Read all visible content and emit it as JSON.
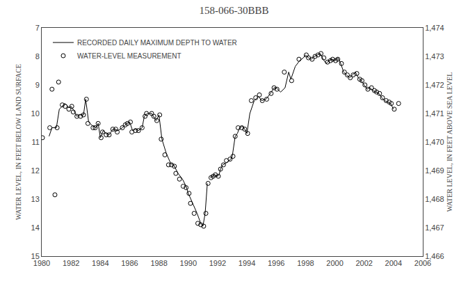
{
  "chart_data": {
    "type": "line",
    "title": "158-066-30BBB",
    "ylabel": "WATER LEVEL, IN FEET BELOW LAND SURFACE",
    "y2label": "WATER LEVEL, IN FEET ABOVE SEA LEVEL",
    "xlim": [
      1980,
      2006
    ],
    "xticks": [
      1980,
      1982,
      1984,
      1986,
      1988,
      1990,
      1992,
      1994,
      1996,
      1998,
      2000,
      2002,
      2004,
      2006
    ],
    "ylim": [
      15,
      7
    ],
    "yticks": [
      7,
      8,
      9,
      10,
      11,
      12,
      13,
      14,
      15
    ],
    "y2lim": [
      1466,
      1474
    ],
    "y2ticks": [
      {
        "value": 1466,
        "label": "1,466"
      },
      {
        "value": 1467,
        "label": "1,467"
      },
      {
        "value": 1468,
        "label": "1,468"
      },
      {
        "value": 1469,
        "label": "1,469"
      },
      {
        "value": 1470,
        "label": "1,470"
      },
      {
        "value": 1471,
        "label": "1,471"
      },
      {
        "value": 1472,
        "label": "1,472"
      },
      {
        "value": 1473,
        "label": "1,473"
      },
      {
        "value": 1474,
        "label": "1,474"
      }
    ],
    "grid": false,
    "legend": "upper left",
    "series": [
      {
        "name": "RECORDED DAILY MAXIMUM DEPTH TO WATER",
        "type": "line",
        "color": "#000000",
        "line_style": "solid",
        "x": [
          1980.5,
          1980.7,
          1981.0,
          1981.2,
          1981.4,
          1981.55,
          1981.7,
          1981.85,
          1982.0,
          1982.2,
          1982.4,
          1982.6,
          1982.85,
          1983.0,
          1983.2,
          1983.5,
          1983.7,
          1983.85,
          1984.0,
          1984.2,
          1984.4,
          1984.6,
          1984.85,
          1985.0,
          1985.2,
          1985.5,
          1985.8,
          1986.0,
          1986.2,
          1986.4,
          1986.6,
          1986.85,
          1987.0,
          1987.2,
          1987.5,
          1987.8,
          1988.0,
          1988.2,
          1988.5,
          1988.8,
          1989.0,
          1989.3,
          1989.6,
          1989.85,
          1990.0,
          1990.3,
          1990.6,
          1990.85,
          1991.0,
          1991.15,
          1991.3,
          null,
          1991.5,
          1991.65,
          1991.8,
          1992.0,
          1992.1,
          1992.2,
          1992.35,
          1992.55,
          1992.75,
          1992.9,
          1993.0,
          1993.1,
          1993.2,
          1993.35,
          1993.5,
          1993.7,
          1993.85,
          1994.0,
          1994.2,
          1994.5,
          1994.8,
          1995.0,
          1995.3,
          1995.6,
          1995.85,
          1996.0,
          1996.3,
          1996.6,
          1996.85,
          1997.0,
          1997.3,
          1997.6,
          1997.85,
          1998.0,
          1998.2,
          1998.4,
          1998.6,
          1998.8,
          1999.0,
          1999.2,
          1999.4,
          1999.6,
          1999.8,
          2000.0,
          2000.2,
          2000.4,
          2000.6,
          2000.8,
          2001.0,
          2001.2,
          2001.4,
          2001.6,
          2001.8,
          2002.0,
          2002.2,
          2002.4,
          2002.6,
          2002.8,
          2003.0,
          2003.2,
          2003.4,
          2003.6,
          2003.8,
          2004.0
        ],
        "values": [
          10.8,
          10.5,
          10.5,
          9.85,
          9.75,
          9.65,
          9.7,
          9.8,
          9.75,
          9.9,
          10.1,
          10.05,
          10.05,
          9.5,
          10.3,
          10.45,
          10.5,
          10.35,
          10.85,
          10.6,
          10.7,
          10.75,
          10.55,
          10.55,
          10.6,
          10.5,
          10.35,
          10.3,
          10.6,
          10.55,
          10.6,
          10.5,
          10.1,
          10.0,
          10.0,
          10.25,
          10.05,
          10.9,
          11.4,
          11.75,
          11.8,
          12.1,
          12.3,
          12.55,
          12.8,
          13.15,
          13.5,
          13.85,
          13.95,
          13.5,
          12.45,
          null,
          12.25,
          12.2,
          12.15,
          12.2,
          12.15,
          11.95,
          11.8,
          11.75,
          11.65,
          11.6,
          11.5,
          11.1,
          10.8,
          10.7,
          10.5,
          10.45,
          10.55,
          10.7,
          10.0,
          9.55,
          9.4,
          9.55,
          9.5,
          9.3,
          9.1,
          9.1,
          9.25,
          9.1,
          8.55,
          8.8,
          8.35,
          8.15,
          8.05,
          7.95,
          8.05,
          8.1,
          8.0,
          7.95,
          7.9,
          8.1,
          8.25,
          8.15,
          8.1,
          8.15,
          8.05,
          8.25,
          8.55,
          8.65,
          8.75,
          8.65,
          8.55,
          8.75,
          8.85,
          9.0,
          9.15,
          9.1,
          9.2,
          9.25,
          9.3,
          9.45,
          9.55,
          9.6,
          9.65,
          9.85
        ]
      },
      {
        "name": "WATER-LEVEL MEASUREMENT",
        "type": "scatter",
        "color": "#000000",
        "marker": "open_circle",
        "x": [
          1980.05,
          1980.55,
          1980.7,
          1980.9,
          1981.05,
          1981.15,
          1981.4,
          1981.6,
          1981.85,
          1982.05,
          1982.15,
          1982.4,
          1982.65,
          1982.85,
          1983.05,
          1983.15,
          1983.5,
          1983.65,
          1983.85,
          1984.05,
          1984.15,
          1984.4,
          1984.6,
          1984.85,
          1985.05,
          1985.15,
          1985.5,
          1985.7,
          1985.85,
          1986.05,
          1986.15,
          1986.4,
          1986.6,
          1986.85,
          1987.05,
          1987.15,
          1987.5,
          1987.65,
          1987.85,
          1988.05,
          1988.15,
          1988.4,
          1988.65,
          1988.85,
          1989.05,
          1989.15,
          1989.4,
          1989.65,
          1989.85,
          1990.05,
          1990.15,
          1990.4,
          1990.65,
          1990.85,
          1991.05,
          1991.2,
          1991.35,
          1991.55,
          1991.7,
          1991.85,
          1992.05,
          1992.2,
          1992.4,
          1992.6,
          1992.85,
          1993.05,
          1993.2,
          1993.4,
          1993.65,
          1993.85,
          1994.05,
          1994.3,
          1994.6,
          1994.85,
          1995.05,
          1995.35,
          1995.65,
          1995.85,
          1996.05,
          1996.55,
          1997.05,
          1997.55,
          1998.05,
          1998.2,
          1998.45,
          1998.65,
          1998.85,
          1999.05,
          1999.25,
          1999.5,
          1999.7,
          1999.85,
          2000.05,
          2000.2,
          2000.45,
          2000.65,
          2000.85,
          2001.05,
          2001.25,
          2001.5,
          2001.7,
          2001.85,
          2002.05,
          2002.25,
          2002.5,
          2002.7,
          2002.85,
          2003.05,
          2003.25,
          2003.5,
          2003.7,
          2003.85,
          2004.05,
          2004.35
        ],
        "values": [
          10.85,
          10.5,
          9.15,
          12.85,
          10.5,
          8.9,
          9.7,
          9.75,
          9.85,
          9.75,
          9.95,
          10.1,
          10.1,
          10.05,
          9.5,
          10.35,
          10.5,
          10.5,
          10.35,
          10.85,
          10.65,
          10.75,
          10.75,
          10.55,
          10.55,
          10.65,
          10.5,
          10.4,
          10.35,
          10.3,
          10.65,
          10.6,
          10.6,
          10.5,
          10.1,
          10.0,
          10.0,
          10.1,
          10.25,
          10.05,
          10.9,
          11.45,
          11.8,
          11.8,
          11.85,
          12.1,
          12.3,
          12.55,
          12.6,
          12.8,
          13.15,
          13.5,
          13.85,
          13.9,
          13.95,
          13.5,
          12.45,
          12.25,
          12.2,
          12.15,
          12.2,
          11.95,
          11.8,
          11.65,
          11.6,
          11.5,
          10.8,
          10.5,
          10.5,
          10.55,
          10.7,
          9.55,
          9.45,
          9.35,
          9.55,
          9.5,
          9.3,
          9.1,
          9.15,
          8.55,
          8.85,
          8.1,
          7.95,
          8.05,
          8.1,
          8.0,
          7.95,
          7.9,
          8.05,
          8.2,
          8.15,
          8.1,
          8.15,
          8.1,
          8.25,
          8.55,
          8.65,
          8.75,
          8.65,
          8.6,
          8.8,
          8.85,
          9.0,
          9.15,
          9.1,
          9.2,
          9.25,
          9.3,
          9.45,
          9.55,
          9.6,
          9.65,
          9.85,
          9.65
        ]
      }
    ]
  }
}
